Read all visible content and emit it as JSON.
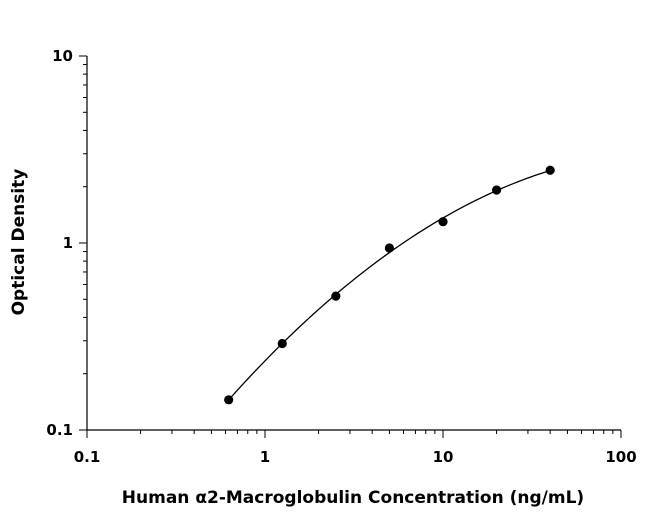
{
  "chart_data": {
    "type": "scatter",
    "title": "",
    "xlabel": "Human α2-Macroglobulin Concentration (ng/mL)",
    "ylabel": "Optical Density",
    "x_scale": "log",
    "y_scale": "log",
    "xlim": [
      0.1,
      100
    ],
    "ylim": [
      0.1,
      10
    ],
    "x_ticks": [
      "0.1",
      "1",
      "10",
      "100"
    ],
    "y_ticks": [
      "0.1",
      "1",
      "10"
    ],
    "grid": false,
    "legend": "none",
    "series": [
      {
        "x": [
          0.625,
          1.25,
          2.5,
          5,
          10,
          20,
          40
        ],
        "values": [
          0.145,
          0.29,
          0.52,
          0.94,
          1.3,
          1.92,
          2.45
        ],
        "fit_curve": true
      }
    ],
    "colors": {
      "marker": "#000000",
      "curve": "#000000",
      "axis": "#000000"
    }
  }
}
